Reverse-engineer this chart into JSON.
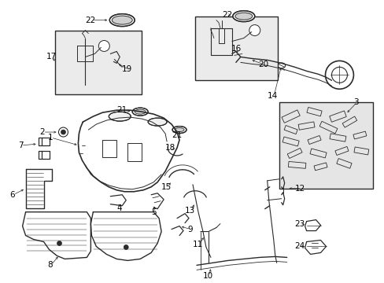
{
  "background_color": "#ffffff",
  "line_color": "#2a2a2a",
  "label_color": "#000000",
  "box_bg": "#e8e8e8",
  "figsize": [
    4.89,
    3.6
  ],
  "dpi": 100
}
